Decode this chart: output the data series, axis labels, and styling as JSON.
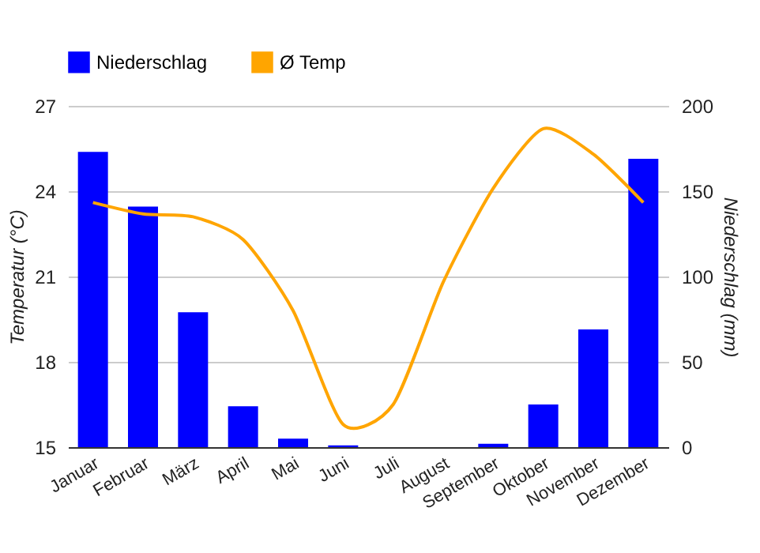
{
  "chart_data": {
    "type": "bar",
    "categories": [
      "Januar",
      "Februar",
      "März",
      "April",
      "Mai",
      "Juni",
      "Juli",
      "August",
      "September",
      "Oktober",
      "November",
      "Dezember"
    ],
    "series": [
      {
        "name": "Niederschlag",
        "axis": "y2",
        "color": "#0000ff",
        "values": [
          173,
          141,
          79,
          24,
          5,
          1,
          0,
          0,
          2,
          25,
          69,
          169
        ]
      },
      {
        "name": "Ø Temp",
        "type": "line",
        "axis": "y",
        "color": "#ffa500",
        "values": [
          23.6,
          23.2,
          23.1,
          22.3,
          19.8,
          15.8,
          16.5,
          20.8,
          24.1,
          26.2,
          25.3,
          23.6
        ]
      }
    ],
    "ylabel": "Temperatur (°C)",
    "y2label": "Niederschlag (mm)",
    "ylim": [
      15,
      27
    ],
    "yticks": [
      15,
      18,
      21,
      24,
      27
    ],
    "y2lim": [
      0,
      200
    ],
    "y2ticks": [
      0,
      50,
      100,
      150,
      200
    ],
    "grid": "y",
    "legend": "top left"
  }
}
